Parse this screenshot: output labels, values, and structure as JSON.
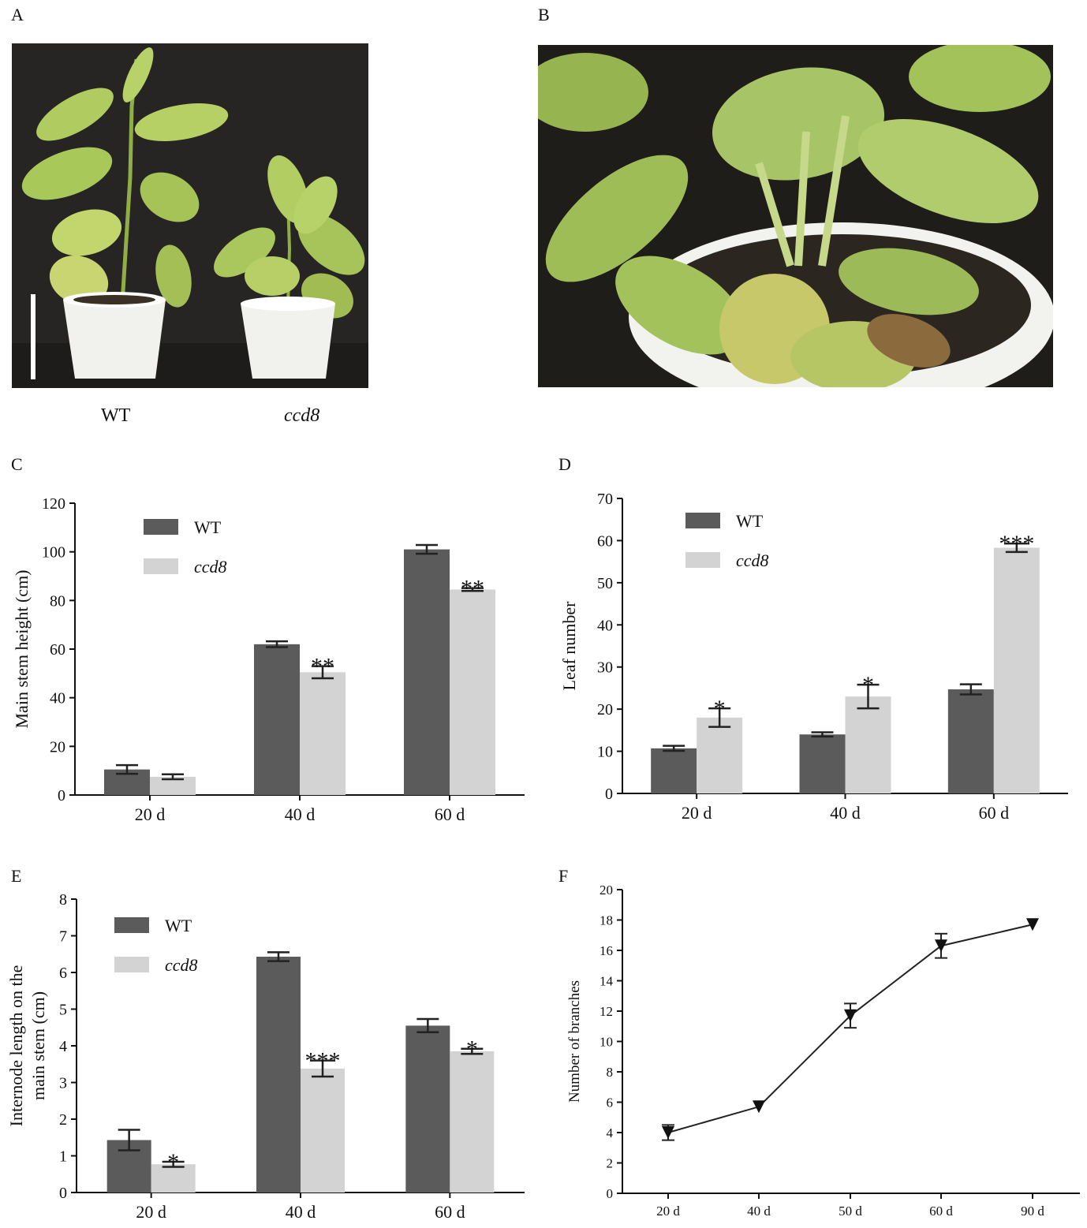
{
  "panels": {
    "a": "A",
    "b": "B",
    "c": "C",
    "d": "D",
    "e": "E",
    "f": "F"
  },
  "photo_labels": {
    "wt": "WT",
    "ccd8": "ccd8"
  },
  "colors": {
    "wt": "#5b5b5b",
    "ccd8": "#d3d3d3",
    "photo_bg": "#262524",
    "leaf": "#a9c85a",
    "pot": "#f1f1ee"
  },
  "chart_data": [
    {
      "id": "C",
      "type": "bar",
      "ylabel": "Main stem height (cm)",
      "categories": [
        "20 d",
        "40 d",
        "60 d"
      ],
      "ylim": [
        0,
        120
      ],
      "yticks": [
        0,
        20,
        40,
        60,
        80,
        100,
        120
      ],
      "legend": "top-left",
      "series": [
        {
          "name": "WT",
          "values": [
            10.5,
            62,
            101
          ],
          "errors": [
            1.8,
            1.2,
            1.8
          ]
        },
        {
          "name": "ccd8",
          "values": [
            7.5,
            50.5,
            84.5
          ],
          "errors": [
            1.0,
            2.5,
            0.6
          ]
        }
      ],
      "significance": [
        "",
        "**",
        "**"
      ]
    },
    {
      "id": "D",
      "type": "bar",
      "ylabel": "Leaf number",
      "categories": [
        "20 d",
        "40 d",
        "60 d"
      ],
      "ylim": [
        0,
        70
      ],
      "yticks": [
        0,
        10,
        20,
        30,
        40,
        50,
        60,
        70
      ],
      "legend": "top-left",
      "series": [
        {
          "name": "WT",
          "values": [
            10.7,
            14,
            24.7
          ],
          "errors": [
            0.6,
            0.5,
            1.2
          ]
        },
        {
          "name": "ccd8",
          "values": [
            18,
            23,
            58.3
          ],
          "errors": [
            2.2,
            2.8,
            1.0
          ]
        }
      ],
      "significance": [
        "*",
        "*",
        "***"
      ]
    },
    {
      "id": "E",
      "type": "bar",
      "ylabel": [
        "Internode length on the",
        "main stem (cm)"
      ],
      "categories": [
        "20 d",
        "40 d",
        "60 d"
      ],
      "ylim": [
        0,
        8
      ],
      "yticks": [
        0,
        1,
        2,
        3,
        4,
        5,
        6,
        7,
        8
      ],
      "legend": "top-left",
      "series": [
        {
          "name": "WT",
          "values": [
            1.43,
            6.43,
            4.55
          ],
          "errors": [
            0.28,
            0.12,
            0.18
          ]
        },
        {
          "name": "ccd8",
          "values": [
            0.77,
            3.38,
            3.85
          ],
          "errors": [
            0.07,
            0.22,
            0.07
          ]
        }
      ],
      "significance": [
        "*",
        "***",
        "*"
      ]
    },
    {
      "id": "F",
      "type": "line",
      "ylabel": "Number of branches",
      "categories": [
        "20 d",
        "40 d",
        "50 d",
        "60 d",
        "90 d"
      ],
      "ylim": [
        0,
        20
      ],
      "yticks": [
        0,
        2,
        4,
        6,
        8,
        10,
        12,
        14,
        16,
        18,
        20
      ],
      "series": [
        {
          "values": [
            4.0,
            5.7,
            11.7,
            16.3,
            17.7
          ],
          "errors": [
            0.5,
            0.0,
            0.8,
            0.8,
            0.0
          ]
        }
      ]
    }
  ]
}
